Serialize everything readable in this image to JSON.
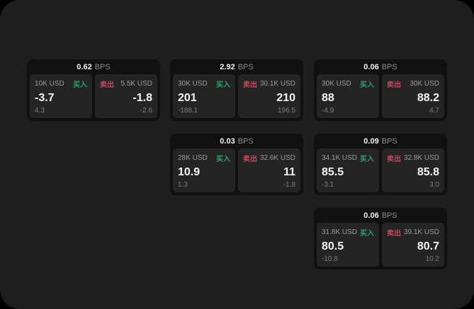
{
  "labels": {
    "bps": "BPS",
    "buy": "买入",
    "sell": "卖出"
  },
  "colors": {
    "page_bg": "#000000",
    "panel_bg": "#1e1e1e",
    "card_bg": "#101010",
    "tile_bg": "#242424",
    "buy_green": "#2fa06b",
    "sell_red": "#c4495f",
    "text_primary": "#f5f5f5",
    "text_muted": "#8e8e8e"
  },
  "cards": [
    {
      "bps": "0.62",
      "buy": {
        "size": "10K USD",
        "value": "-3.7",
        "sub": "4.3"
      },
      "sell": {
        "size": "5.5K USD",
        "value": "-1.8",
        "sub": "-2.6"
      }
    },
    {
      "bps": "2.92",
      "buy": {
        "size": "30K USD",
        "value": "201",
        "sub": "-188.1"
      },
      "sell": {
        "size": "30.1K USD",
        "value": "210",
        "sub": "196.5"
      }
    },
    {
      "bps": "0.06",
      "buy": {
        "size": "30K USD",
        "value": "88",
        "sub": "-4.9"
      },
      "sell": {
        "size": "30K USD",
        "value": "88.2",
        "sub": "4.7"
      }
    },
    {
      "bps": "0.03",
      "buy": {
        "size": "28K USD",
        "value": "10.9",
        "sub": "1.3"
      },
      "sell": {
        "size": "32.6K USD",
        "value": "11",
        "sub": "-1.8"
      }
    },
    {
      "bps": "0.09",
      "buy": {
        "size": "34.1K USD",
        "value": "85.5",
        "sub": "-3.1"
      },
      "sell": {
        "size": "32.8K USD",
        "value": "85.8",
        "sub": "3.0"
      }
    },
    {
      "bps": "0.06",
      "buy": {
        "size": "31.8K USD",
        "value": "80.5",
        "sub": "-10.8"
      },
      "sell": {
        "size": "39.1K USD",
        "value": "80.7",
        "sub": "10.2"
      }
    }
  ]
}
